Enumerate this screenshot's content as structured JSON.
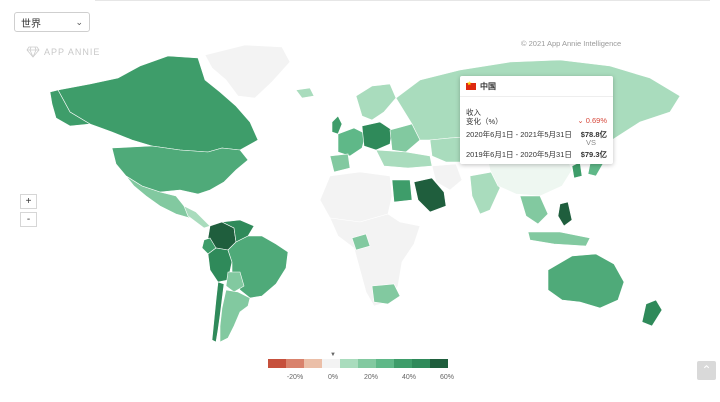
{
  "region_select": {
    "value": "世界"
  },
  "watermark": {
    "text": "APP ANNIE"
  },
  "copyright": "© 2021 App Annie Intelligence",
  "zoom": {
    "in": "+",
    "out": "-"
  },
  "tooltip": {
    "country": "中国",
    "metric": "收入",
    "change_label": "变化（%）",
    "change_value": "0.69%",
    "period_current": "2020年6月1日 - 2021年5月31日",
    "value_current": "$78.8亿",
    "vs": "VS",
    "period_previous": "2019年6月1日 - 2020年5月31日",
    "value_previous": "$79.3亿"
  },
  "legend": {
    "ticks": [
      "-20%",
      "0%",
      "20%",
      "40%",
      "60%"
    ],
    "colors": {
      "neg_strong": "#c6503c",
      "neg_light": "#ebbfa8",
      "zero": "#f3f3f3",
      "pos_light": "#a9dcbd",
      "pos_mid": "#5fb888",
      "pos_strong": "#2f8a5a",
      "pos_dark": "#1f5e3d"
    }
  },
  "icons": {
    "back_to_top": "arrow-up-icon",
    "dropdown": "chevron-down-icon",
    "logo": "diamond-logo-icon",
    "flag": "china-flag-icon"
  }
}
